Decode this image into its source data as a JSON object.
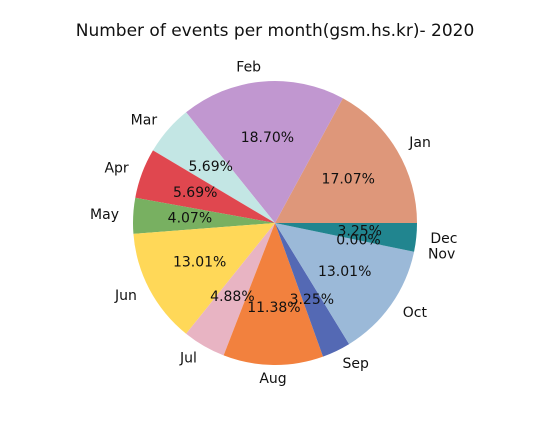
{
  "chart_data": {
    "type": "pie",
    "title": "Number of events per month(gsm.hs.kr)- 2020",
    "categories": [
      "Jan",
      "Feb",
      "Mar",
      "Apr",
      "May",
      "Jun",
      "Jul",
      "Aug",
      "Sep",
      "Oct",
      "Nov",
      "Dec"
    ],
    "values": [
      17.07,
      18.7,
      5.69,
      5.69,
      4.07,
      13.01,
      4.88,
      11.38,
      3.25,
      13.01,
      0.0,
      3.25
    ],
    "value_labels": [
      "17.07%",
      "18.70%",
      "5.69%",
      "5.69%",
      "4.07%",
      "13.01%",
      "4.88%",
      "11.38%",
      "3.25%",
      "13.01%",
      "0.00%",
      "3.25%"
    ],
    "colors": [
      "#de977a",
      "#c197d0",
      "#c3e6e4",
      "#e0474f",
      "#78b061",
      "#ffd858",
      "#e8b4c3",
      "#f2813e",
      "#5469b4",
      "#9bb9d8",
      "#21858f",
      "#21858f"
    ],
    "start_angle_deg": 0,
    "direction": "counterclockwise",
    "legend": "none"
  }
}
